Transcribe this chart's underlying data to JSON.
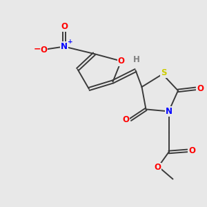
{
  "background_color": "#e8e8e8",
  "bond_color": "#3a3a3a",
  "colors": {
    "O": "#ff0000",
    "N": "#0000ff",
    "S": "#cccc00",
    "H": "#808080",
    "C": "#3a3a3a"
  },
  "figsize": [
    3.0,
    3.0
  ],
  "dpi": 100
}
